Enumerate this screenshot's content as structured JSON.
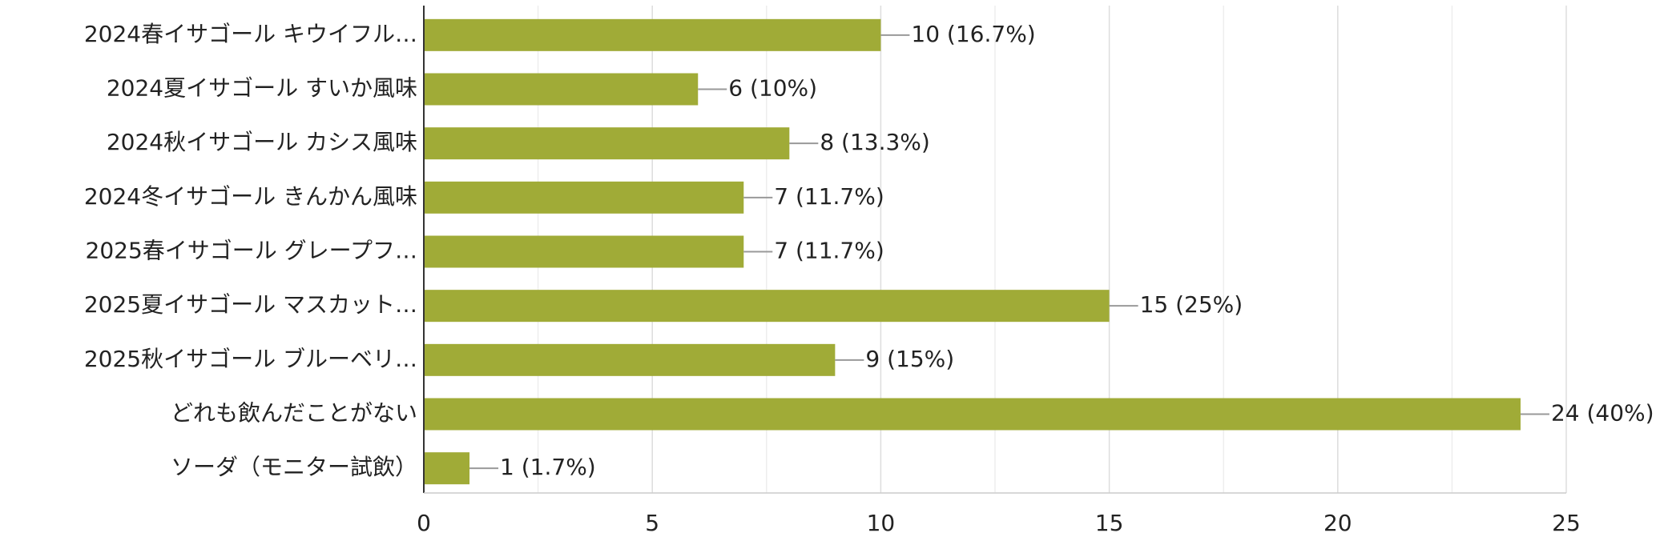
{
  "chart_data": {
    "type": "barh",
    "categories": [
      "2024春イサゴール キウイフル…",
      "2024夏イサゴール すいか風味",
      "2024秋イサゴール カシス風味",
      "2024冬イサゴール きんかん風味",
      "2025春イサゴール グレープフ…",
      "2025夏イサゴール マスカット…",
      "2025秋イサゴール ブルーベリ…",
      "どれも飲んだことがない",
      "ソーダ（モニター試飲）"
    ],
    "values": [
      10,
      6,
      8,
      7,
      7,
      15,
      9,
      24,
      1
    ],
    "value_labels": [
      "10 (16.7%)",
      "6 (10%)",
      "8 (13.3%)",
      "7 (11.7%)",
      "7 (11.7%)",
      "15 (25%)",
      "9 (15%)",
      "24 (40%)",
      "1 (1.7%)"
    ],
    "color": "#a0ab37",
    "xlim": [
      0,
      25
    ],
    "xticks": [
      0,
      5,
      10,
      15,
      20,
      25
    ],
    "minor_gridlines": [
      2.5,
      7.5,
      12.5,
      17.5,
      22.5
    ],
    "grid": true
  }
}
